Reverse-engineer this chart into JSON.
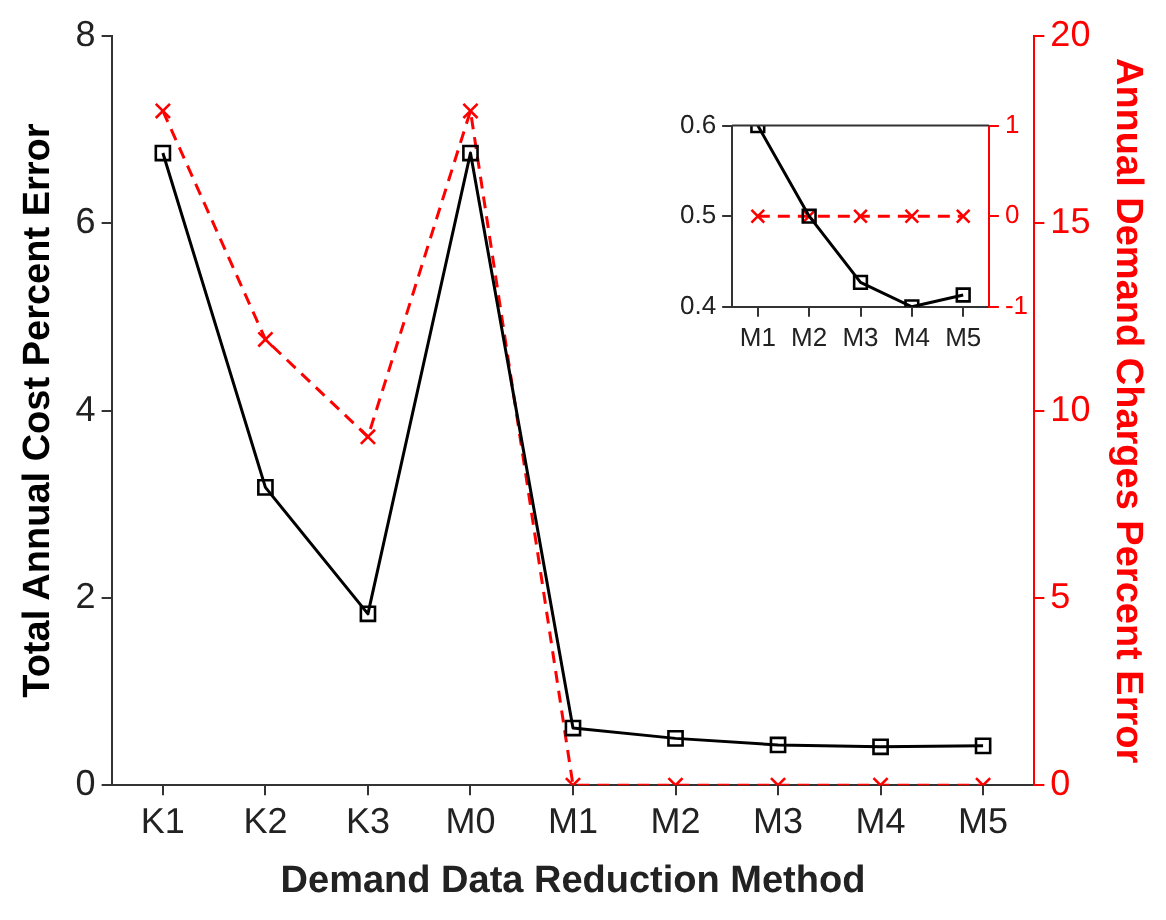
{
  "chart_data": [
    {
      "type": "line",
      "xlabel": "Demand Data Reduction Method",
      "ylabel": "Total Annual Cost Percent Error",
      "y2label": "Annual Demand Charges Percent Error",
      "categories": [
        "K1",
        "K2",
        "K3",
        "M0",
        "M1",
        "M2",
        "M3",
        "M4",
        "M5"
      ],
      "series": [
        {
          "color": "#000000",
          "marker": "square",
          "line_style": "solid",
          "values": [
            6.75,
            3.18,
            1.83,
            6.75,
            0.61,
            0.5,
            0.43,
            0.41,
            0.42
          ]
        },
        {
          "color": "#ff0000",
          "marker": "cross",
          "line_style": "dashed",
          "axis": "y2",
          "values": [
            18,
            11.9,
            9.3,
            18,
            0,
            0,
            0,
            0,
            0
          ]
        }
      ],
      "ylim": [
        0,
        8
      ],
      "yticks": [
        0,
        2,
        4,
        6,
        8
      ],
      "y2lim": [
        0,
        20
      ],
      "y2ticks": [
        0,
        5,
        10,
        15,
        20
      ],
      "grid": false,
      "legend": false
    },
    {
      "type": "line",
      "categories": [
        "M1",
        "M2",
        "M3",
        "M4",
        "M5"
      ],
      "series": [
        {
          "color": "#000000",
          "marker": "square",
          "line_style": "solid",
          "values": [
            0.6,
            0.5,
            0.427,
            0.4,
            0.413
          ]
        },
        {
          "color": "#ff0000",
          "marker": "cross",
          "line_style": "dashed",
          "axis": "y2",
          "values": [
            0,
            0,
            0,
            0,
            0
          ]
        }
      ],
      "ylim": [
        0.4,
        0.6
      ],
      "yticks": [
        0.4,
        0.5,
        0.6
      ],
      "y2lim": [
        -1,
        1
      ],
      "y2ticks": [
        -1,
        0,
        1
      ],
      "grid": false,
      "legend": false
    }
  ]
}
